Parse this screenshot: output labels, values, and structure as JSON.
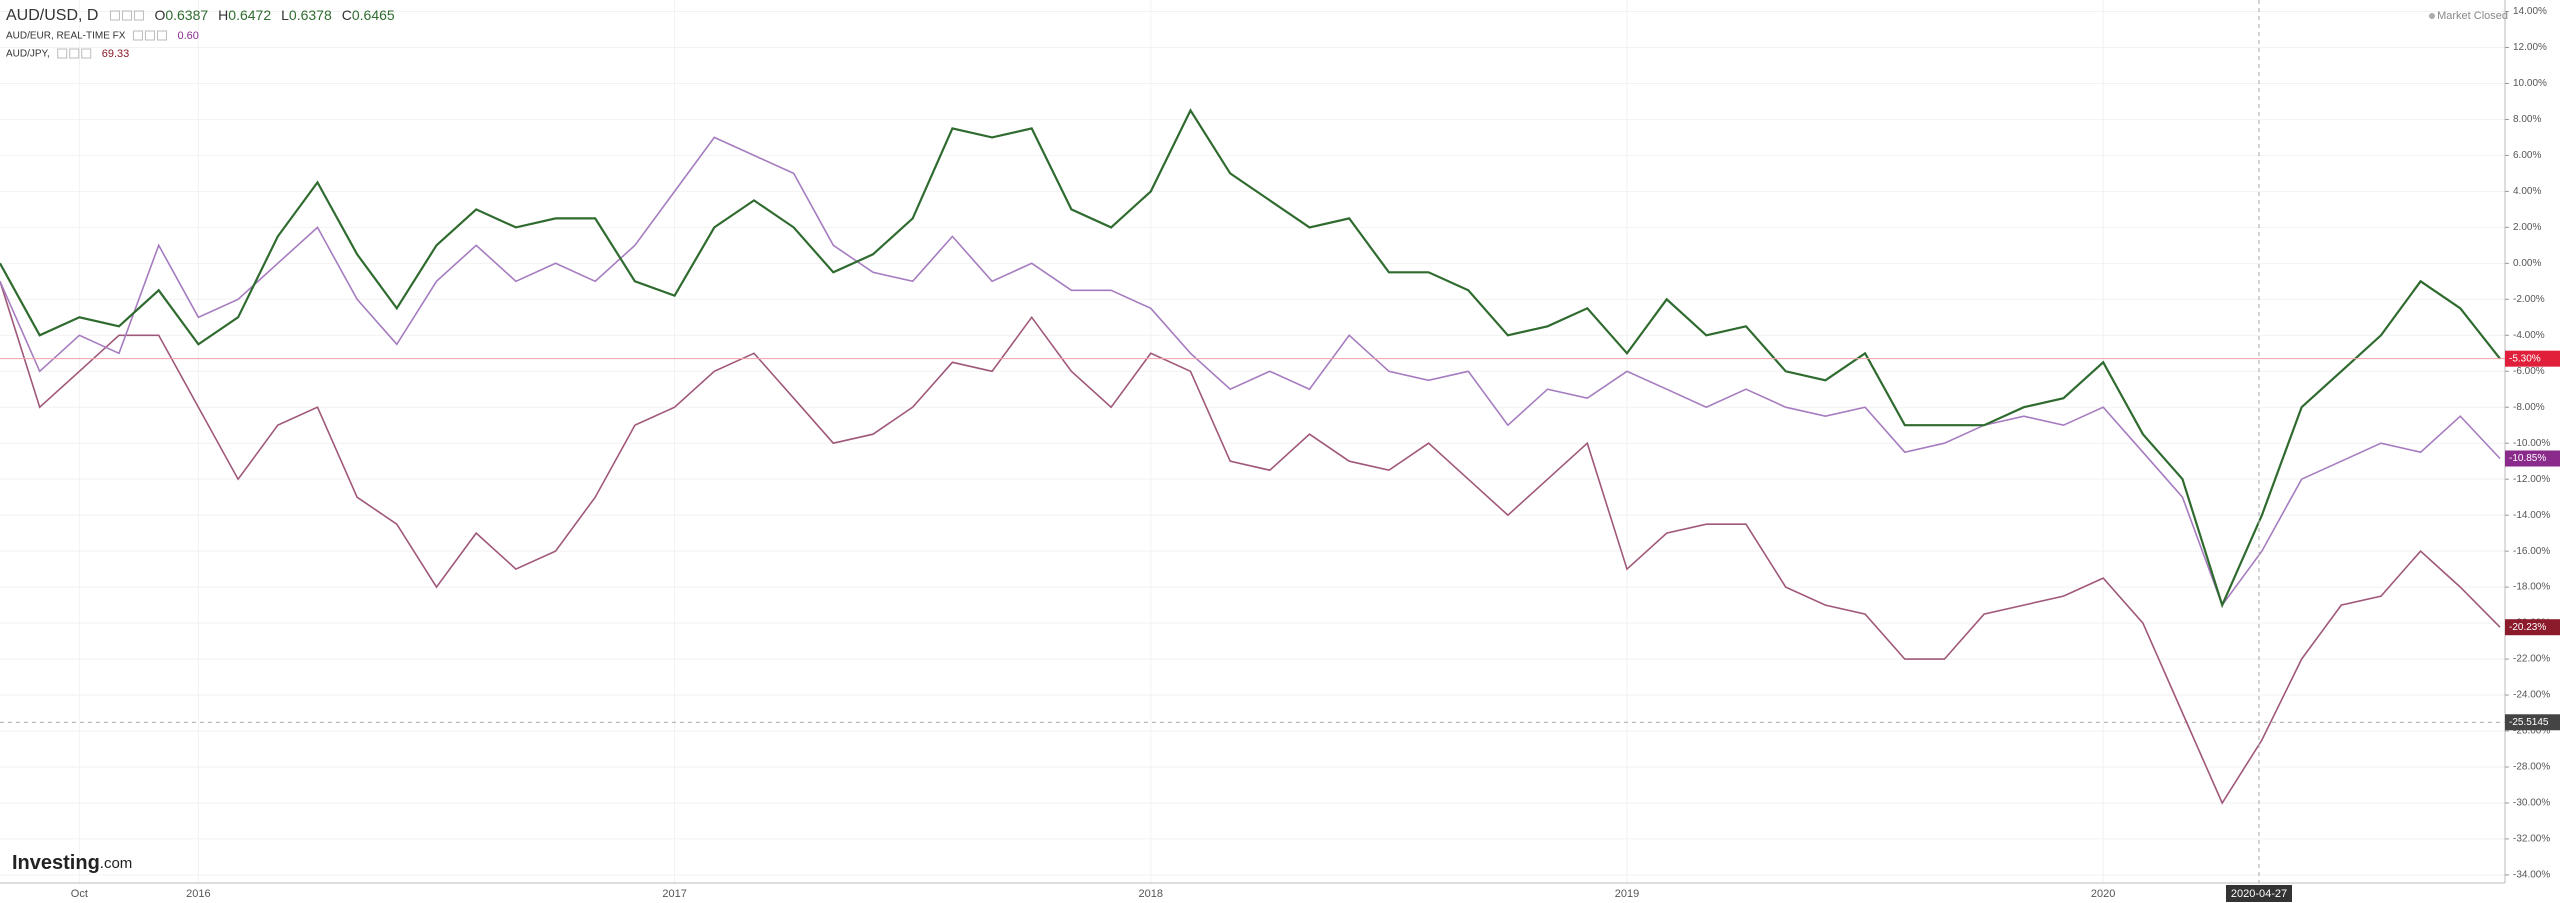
{
  "chart_data": {
    "type": "line",
    "categories": [
      null,
      null,
      "Oct",
      null,
      null,
      "2016",
      null,
      null,
      null,
      null,
      null,
      null,
      null,
      null,
      null,
      null,
      null,
      "2017",
      null,
      null,
      null,
      null,
      null,
      null,
      null,
      null,
      null,
      null,
      null,
      "2018",
      null,
      null,
      null,
      null,
      null,
      null,
      null,
      null,
      null,
      null,
      null,
      "2019",
      null,
      null,
      null,
      null,
      null,
      null,
      null,
      null,
      null,
      null,
      null,
      "2020",
      null,
      null,
      null,
      null,
      null,
      null,
      null,
      null,
      null,
      null
    ],
    "series": [
      {
        "name": "AUD/USD, D",
        "color": "#2f6b2f",
        "label_color": "#e0203a",
        "last_label": "-5.30%",
        "ohlc": [
          {
            "label": "O",
            "value": 0.6387
          },
          {
            "label": "H",
            "value": 0.6472
          },
          {
            "label": "L",
            "value": 0.6378
          },
          {
            "label": "C",
            "value": 0.6465
          }
        ],
        "values": [
          0,
          -4,
          -3,
          -3.5,
          -1.5,
          -4.5,
          -3,
          1.5,
          4.5,
          0.5,
          -2.5,
          1,
          3,
          2,
          2.5,
          2.5,
          -1,
          -1.8,
          2,
          3.5,
          2,
          -0.5,
          0.5,
          2.5,
          7.5,
          7,
          7.5,
          3,
          2,
          4,
          8.5,
          5,
          3.5,
          2,
          2.5,
          -0.5,
          -0.5,
          -1.5,
          -4,
          -3.5,
          -2.5,
          -5,
          -2,
          -4,
          -3.5,
          -6,
          -6.5,
          -5,
          -9,
          -9,
          -9,
          -8,
          -7.5,
          -5.5,
          -9.5,
          -12,
          -19,
          -14,
          -8,
          -6,
          -4,
          -1,
          -2.5,
          -5.3
        ]
      },
      {
        "name": "AUD/EUR, REAL-TIME FX",
        "color": "#a67cc0",
        "label_color": "#8a2a8a",
        "last_label": "-10.85%",
        "legend_value": {
          "value": 0.6,
          "label": "0.60"
        },
        "values": [
          -1,
          -6,
          -4,
          -5,
          1,
          -3,
          -2,
          0,
          2,
          -2,
          -4.5,
          -1,
          1,
          -1,
          0,
          -1,
          1,
          4,
          7,
          6,
          5,
          1,
          -0.5,
          -1,
          1.5,
          -1,
          0,
          -1.5,
          -1.5,
          -2.5,
          -5,
          -7,
          -6,
          -7,
          -4,
          -6,
          -6.5,
          -6,
          -9,
          -7,
          -7.5,
          -6,
          -7,
          -8,
          -7,
          -8,
          -8.5,
          -8,
          -10.5,
          -10,
          -9,
          -8.5,
          -9,
          -8,
          -10.5,
          -13,
          -19,
          -16,
          -12,
          -11,
          -10,
          -10.5,
          -8.5,
          -10.85
        ]
      },
      {
        "name": "AUD/JPY,",
        "color": "#a0587a",
        "label_color": "#8b1a2a",
        "last_label": "-20.23%",
        "legend_value": 69.33,
        "values": [
          -1,
          -8,
          -6,
          -4,
          -4,
          -8,
          -12,
          -9,
          -8,
          -13,
          -14.5,
          -18,
          -15,
          -17,
          -16,
          -13,
          -9,
          -8,
          -6,
          -5,
          -7.5,
          -10,
          -9.5,
          -8,
          -5.5,
          -6,
          -3,
          -6,
          -8,
          -5,
          -6,
          -11,
          -11.5,
          -9.5,
          -11,
          -11.5,
          -10,
          -12,
          -14,
          -12,
          -10,
          -17,
          -15,
          -14.5,
          -14.5,
          -18,
          -19,
          -19.5,
          -22,
          -22,
          -19.5,
          -19,
          -18.5,
          -17.5,
          -20,
          -25,
          -30,
          -26.5,
          -22,
          -19,
          -18.5,
          -16,
          -18,
          -20.23
        ]
      }
    ],
    "ylim": [
      -34.45,
      14.64
    ],
    "yticks": [
      {
        "value": 14,
        "label": "14.00%"
      },
      {
        "value": 12,
        "label": "12.00%"
      },
      {
        "value": 10,
        "label": "10.00%"
      },
      {
        "value": 8,
        "label": "8.00%"
      },
      {
        "value": 6,
        "label": "6.00%"
      },
      {
        "value": 4,
        "label": "4.00%"
      },
      {
        "value": 2,
        "label": "2.00%"
      },
      {
        "value": 0,
        "label": "0.00%"
      },
      {
        "value": -2,
        "label": "-2.00%"
      },
      {
        "value": -4,
        "label": "-4.00%"
      },
      {
        "value": -6,
        "label": "-6.00%"
      },
      {
        "value": -8,
        "label": "-8.00%"
      },
      {
        "value": -10,
        "label": "-10.00%"
      },
      {
        "value": -12,
        "label": "-12.00%"
      },
      {
        "value": -14,
        "label": "-14.00%"
      },
      {
        "value": -16,
        "label": "-16.00%"
      },
      {
        "value": -18,
        "label": "-18.00%"
      },
      {
        "value": -20,
        "label": "-20.00%"
      },
      {
        "value": -22,
        "label": "-22.00%"
      },
      {
        "value": -24,
        "label": "-24.00%"
      },
      {
        "value": -26,
        "label": "-26.00%"
      },
      {
        "value": -28,
        "label": "-28.00%"
      },
      {
        "value": -30,
        "label": "-30.00%"
      },
      {
        "value": -32,
        "label": "-32.00%"
      },
      {
        "value": -34,
        "label": "-34.00%"
      }
    ],
    "grid": true,
    "crosshair": {
      "x_label": "2020-04-27",
      "y": -25.5145
    },
    "status": "Market Closed",
    "brand": {
      "name": "Investing",
      "suffix": ".com"
    }
  }
}
